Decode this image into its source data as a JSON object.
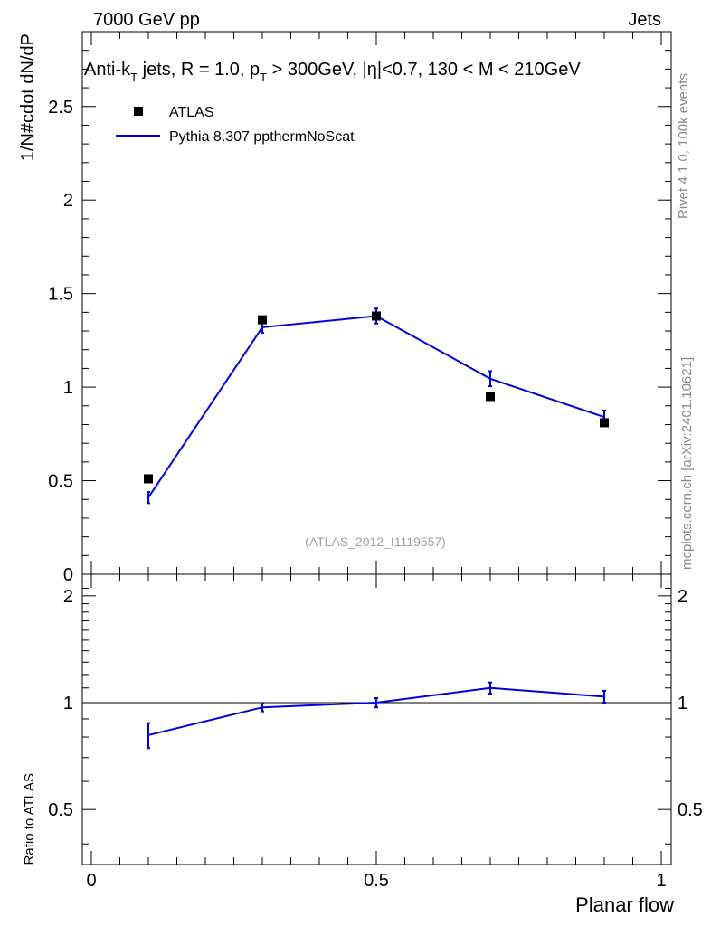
{
  "header": {
    "left": "7000 GeV pp",
    "right": "Jets"
  },
  "side_text": {
    "rivet": "Rivet 4.1.0,  100k events",
    "mcplots": "mcplots.cern.ch [arXiv:2401.10621]"
  },
  "chart_data": [
    {
      "type": "scatter",
      "title": "Anti-k_T jets, R = 1.0, p_T > 300GeV, |η|<0.7, 130 < M < 210GeV",
      "title_parts": {
        "a": "Anti-k",
        "a_sub": "T",
        "b": " jets, R = 1.0, p",
        "b_sub": "T",
        "c": " > 300GeV, |η|<0.7, 130 < M < 210GeV"
      },
      "ylabel": "1/N#cdot dN/dP",
      "xlabel": "",
      "xlim": [
        0,
        1
      ],
      "ylim": [
        0,
        2.9
      ],
      "yticks": [
        {
          "v": 0,
          "label": "0"
        },
        {
          "v": 0.5,
          "label": "0.5"
        },
        {
          "v": 1,
          "label": "1"
        },
        {
          "v": 1.5,
          "label": "1.5"
        },
        {
          "v": 2,
          "label": "2"
        },
        {
          "v": 2.5,
          "label": "2.5"
        }
      ],
      "annotation": "(ATLAS_2012_I1119557)",
      "legend_position": "top-left",
      "series": [
        {
          "name": "ATLAS",
          "kind": "data-points",
          "color": "#000000",
          "x": [
            0.1,
            0.3,
            0.5,
            0.7,
            0.9
          ],
          "y": [
            0.51,
            1.36,
            1.38,
            0.95,
            0.81
          ]
        },
        {
          "name": "Pythia 8.307 ppthermNoScat",
          "kind": "line",
          "color": "#0000dd",
          "x": [
            0.1,
            0.3,
            0.5,
            0.7,
            0.9
          ],
          "y": [
            0.41,
            1.32,
            1.38,
            1.045,
            0.84
          ],
          "err": [
            0.03,
            0.03,
            0.04,
            0.04,
            0.035
          ]
        }
      ]
    },
    {
      "type": "line",
      "title": "",
      "ylabel": "Ratio to ATLAS",
      "xlabel": "Planar flow",
      "xlim": [
        0,
        1
      ],
      "ylim": [
        0.35,
        2.3
      ],
      "yticks": [
        {
          "v": 0.5,
          "label": "0.5"
        },
        {
          "v": 1,
          "label": "1"
        },
        {
          "v": 2,
          "label": "2"
        }
      ],
      "xticks": [
        {
          "v": 0,
          "label": "0"
        },
        {
          "v": 0.5,
          "label": "0.5"
        },
        {
          "v": 1,
          "label": "1"
        }
      ],
      "reference_line": 1,
      "series": [
        {
          "name": "Pythia 8.307 ppthermNoScat / ATLAS",
          "color": "#0000dd",
          "x": [
            0.1,
            0.3,
            0.5,
            0.7,
            0.9
          ],
          "y": [
            0.81,
            0.97,
            1.0,
            1.1,
            1.04
          ],
          "err": [
            0.065,
            0.025,
            0.03,
            0.04,
            0.04
          ]
        }
      ]
    }
  ]
}
